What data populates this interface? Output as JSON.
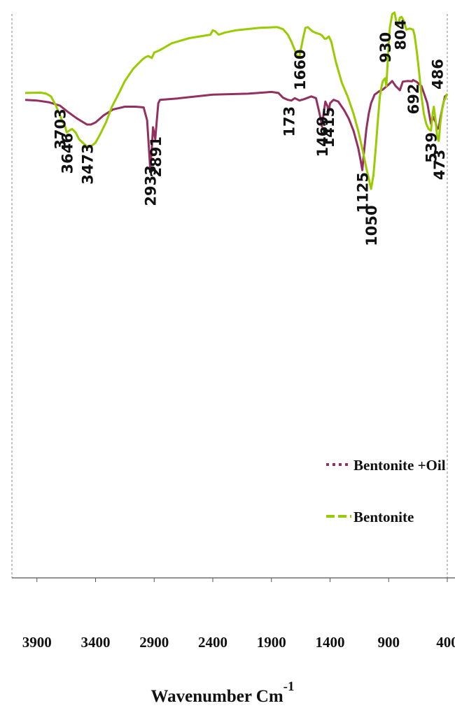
{
  "chart_data": {
    "type": "line",
    "title": "",
    "xlabel": "Wavenumber Cm",
    "xlabel_superscript": "-1",
    "ylabel": "",
    "xlim": [
      4000,
      400
    ],
    "x_reversed": true,
    "x_ticks": [
      3900,
      3400,
      2900,
      2400,
      1900,
      1400,
      900,
      400
    ],
    "x_tick_labels": [
      "3900",
      "3400",
      "2900",
      "2400",
      "1900",
      "1400",
      "900",
      "400"
    ],
    "y_units": "arbitrary",
    "ylim": [
      0,
      100
    ],
    "grid": false,
    "legend_position": "right-middle",
    "series": [
      {
        "name": "Bentonite +Oil",
        "color": "#93305f",
        "dash": "dotted",
        "points": [
          [
            4000,
            77
          ],
          [
            3900,
            76.8
          ],
          [
            3800,
            76.3
          ],
          [
            3703,
            75.3
          ],
          [
            3640,
            73.6
          ],
          [
            3560,
            71.6
          ],
          [
            3473,
            69.8
          ],
          [
            3440,
            69.8
          ],
          [
            3400,
            70.4
          ],
          [
            3330,
            72.5
          ],
          [
            3250,
            74.2
          ],
          [
            3150,
            75.0
          ],
          [
            3060,
            75.0
          ],
          [
            2990,
            74.8
          ],
          [
            2960,
            71.0
          ],
          [
            2945,
            63.0
          ],
          [
            2933,
            56.5
          ],
          [
            2922,
            62.0
          ],
          [
            2910,
            69.0
          ],
          [
            2900,
            67.2
          ],
          [
            2891,
            65.5
          ],
          [
            2880,
            70.0
          ],
          [
            2865,
            76.0
          ],
          [
            2850,
            77.0
          ],
          [
            2700,
            77.4
          ],
          [
            2400,
            78.5
          ],
          [
            2100,
            78.8
          ],
          [
            1900,
            79.3
          ],
          [
            1840,
            79.0
          ],
          [
            1800,
            77.6
          ],
          [
            1760,
            77.0
          ],
          [
            1730,
            76.8
          ],
          [
            1700,
            77.5
          ],
          [
            1660,
            76.8
          ],
          [
            1620,
            77.2
          ],
          [
            1560,
            78.0
          ],
          [
            1520,
            77.5
          ],
          [
            1500,
            74.5
          ],
          [
            1480,
            71.5
          ],
          [
            1469,
            69.2
          ],
          [
            1455,
            73.0
          ],
          [
            1440,
            76.5
          ],
          [
            1420,
            75.0
          ],
          [
            1415,
            73.0
          ],
          [
            1400,
            76.0
          ],
          [
            1370,
            77.0
          ],
          [
            1330,
            76.5
          ],
          [
            1280,
            74.0
          ],
          [
            1240,
            71.5
          ],
          [
            1200,
            68.0
          ],
          [
            1160,
            63.0
          ],
          [
            1140,
            59.5
          ],
          [
            1125,
            56.5
          ],
          [
            1110,
            62.0
          ],
          [
            1090,
            68.5
          ],
          [
            1070,
            73.0
          ],
          [
            1050,
            76.0
          ],
          [
            1020,
            78.5
          ],
          [
            980,
            79.5
          ],
          [
            950,
            80.0
          ],
          [
            900,
            81.5
          ],
          [
            870,
            82.5
          ],
          [
            840,
            81.0
          ],
          [
            804,
            79.8
          ],
          [
            780,
            82.3
          ],
          [
            740,
            82.5
          ],
          [
            700,
            82.4
          ],
          [
            692,
            82.8
          ],
          [
            660,
            82.2
          ],
          [
            620,
            81.0
          ],
          [
            600,
            79.0
          ],
          [
            570,
            76.0
          ],
          [
            550,
            72.0
          ],
          [
            539,
            70.0
          ],
          [
            520,
            72.0
          ],
          [
            500,
            70.5
          ],
          [
            486,
            68.5
          ],
          [
            473,
            68.8
          ],
          [
            460,
            71.5
          ],
          [
            440,
            75.0
          ],
          [
            420,
            78.0
          ],
          [
            400,
            78.5
          ]
        ]
      },
      {
        "name": "Bentonite",
        "color": "#99cc00",
        "dash": "dashed",
        "points": [
          [
            4000,
            79
          ],
          [
            3870,
            79.1
          ],
          [
            3820,
            78.8
          ],
          [
            3780,
            78.0
          ],
          [
            3740,
            75.5
          ],
          [
            3703,
            72.5
          ],
          [
            3680,
            70.5
          ],
          [
            3660,
            69.3
          ],
          [
            3646,
            67.5
          ],
          [
            3625,
            68.0
          ],
          [
            3600,
            68.5
          ],
          [
            3570,
            67.5
          ],
          [
            3540,
            65.5
          ],
          [
            3500,
            64.2
          ],
          [
            3473,
            63.4
          ],
          [
            3440,
            63.4
          ],
          [
            3400,
            64.5
          ],
          [
            3360,
            67.0
          ],
          [
            3310,
            70.5
          ],
          [
            3260,
            75.0
          ],
          [
            3200,
            79.0
          ],
          [
            3150,
            82.5
          ],
          [
            3080,
            86.0
          ],
          [
            3000,
            88.8
          ],
          [
            2970,
            89.5
          ],
          [
            2950,
            89.8
          ],
          [
            2920,
            89.2
          ],
          [
            2900,
            90.8
          ],
          [
            2850,
            91.5
          ],
          [
            2750,
            93.5
          ],
          [
            2600,
            95.0
          ],
          [
            2420,
            96.0
          ],
          [
            2400,
            97.3
          ],
          [
            2380,
            97.0
          ],
          [
            2350,
            96.0
          ],
          [
            2300,
            96.6
          ],
          [
            2200,
            97.3
          ],
          [
            2000,
            98.0
          ],
          [
            1850,
            98.2
          ],
          [
            1800,
            97.6
          ],
          [
            1760,
            96.0
          ],
          [
            1730,
            94.0
          ],
          [
            1700,
            91.5
          ],
          [
            1680,
            89.5
          ],
          [
            1660,
            89.8
          ],
          [
            1650,
            91.5
          ],
          [
            1630,
            95.0
          ],
          [
            1610,
            98.0
          ],
          [
            1590,
            98.2
          ],
          [
            1570,
            97.6
          ],
          [
            1550,
            97.0
          ],
          [
            1520,
            96.5
          ],
          [
            1490,
            96.2
          ],
          [
            1470,
            95.8
          ],
          [
            1445,
            94.8
          ],
          [
            1430,
            94.9
          ],
          [
            1410,
            95.5
          ],
          [
            1390,
            94.0
          ],
          [
            1350,
            88.0
          ],
          [
            1300,
            82.0
          ],
          [
            1250,
            78.0
          ],
          [
            1200,
            73.0
          ],
          [
            1160,
            68.0
          ],
          [
            1120,
            62.0
          ],
          [
            1090,
            57.0
          ],
          [
            1070,
            54.0
          ],
          [
            1050,
            51.0
          ],
          [
            1030,
            55.0
          ],
          [
            1010,
            63.0
          ],
          [
            990,
            72.0
          ],
          [
            975,
            78.0
          ],
          [
            960,
            81.0
          ],
          [
            950,
            82.5
          ],
          [
            930,
            83.3
          ],
          [
            920,
            81.0
          ],
          [
            905,
            90.0
          ],
          [
            890,
            98.0
          ],
          [
            870,
            102.0
          ],
          [
            850,
            102.5
          ],
          [
            830,
            99.0
          ],
          [
            820,
            98.5
          ],
          [
            804,
            101.0
          ],
          [
            790,
            101.2
          ],
          [
            770,
            100.0
          ],
          [
            750,
            97.5
          ],
          [
            720,
            97.8
          ],
          [
            692,
            97.5
          ],
          [
            680,
            96.0
          ],
          [
            660,
            91.0
          ],
          [
            640,
            85.0
          ],
          [
            620,
            78.0
          ],
          [
            600,
            73.0
          ],
          [
            580,
            70.0
          ],
          [
            560,
            68.5
          ],
          [
            539,
            68.0
          ],
          [
            525,
            73.0
          ],
          [
            515,
            75.0
          ],
          [
            500,
            71.0
          ],
          [
            486,
            66.0
          ],
          [
            473,
            65.0
          ],
          [
            460,
            70.0
          ],
          [
            445,
            74.0
          ],
          [
            430,
            76.5
          ],
          [
            400,
            78.8
          ]
        ]
      }
    ],
    "annotations": [
      {
        "text": "3703",
        "x": 3703,
        "y": 62.5
      },
      {
        "text": "3646",
        "x": 3646,
        "y": 55.4
      },
      {
        "text": "3473",
        "x": 3473,
        "y": 52.3
      },
      {
        "text": "2933",
        "x": 2933,
        "y": 46.0
      },
      {
        "text": "2891",
        "x": 2891,
        "y": 54.4
      },
      {
        "text": "173",
        "x": 1753,
        "y": 66.2
      },
      {
        "text": "1660",
        "x": 1660,
        "y": 79.8
      },
      {
        "text": "1469",
        "x": 1469,
        "y": 60.3
      },
      {
        "text": "1415",
        "x": 1415,
        "y": 63.0
      },
      {
        "text": "1125",
        "x": 1125,
        "y": 44.0
      },
      {
        "text": "1050",
        "x": 1050,
        "y": 34.3
      },
      {
        "text": "930",
        "x": 930,
        "y": 87.8
      },
      {
        "text": "804",
        "x": 804,
        "y": 91.5
      },
      {
        "text": "692",
        "x": 692,
        "y": 72.8
      },
      {
        "text": "539",
        "x": 539,
        "y": 58.6
      },
      {
        "text": "486",
        "x": 486,
        "y": 80.0
      },
      {
        "text": "473",
        "x": 473,
        "y": 53.6
      }
    ]
  }
}
